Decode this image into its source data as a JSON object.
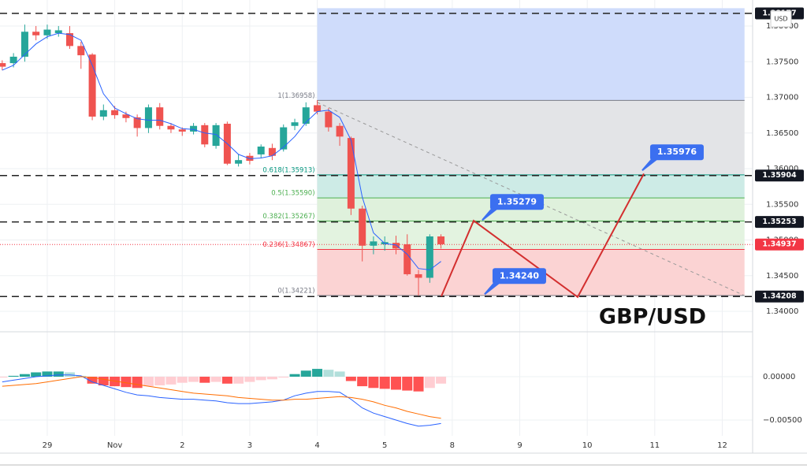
{
  "chart_data": [
    {
      "type": "candlestick",
      "symbol_label": "GBP/USD",
      "currency": "USD",
      "x": [
        -0.667,
        -0.5,
        -0.333,
        -0.167,
        0,
        0.167,
        0.333,
        0.5,
        0.667,
        0.833,
        1,
        1.167,
        1.333,
        1.5,
        1.667,
        1.833,
        2,
        2.167,
        2.333,
        2.5,
        2.667,
        2.833,
        3,
        3.167,
        3.333,
        3.5,
        3.667,
        3.833,
        4,
        4.167,
        4.333,
        4.5,
        4.667,
        4.833,
        5,
        5.167,
        5.333,
        5.5,
        5.667,
        5.833
      ],
      "open": [
        1.3748,
        1.3748,
        1.3757,
        1.3792,
        1.3787,
        1.379,
        1.379,
        1.3772,
        1.376,
        1.3673,
        1.3682,
        1.3676,
        1.3672,
        1.3657,
        1.3686,
        1.366,
        1.3655,
        1.3652,
        1.3661,
        1.3632,
        1.3663,
        1.3607,
        1.3618,
        1.362,
        1.3629,
        1.3627,
        1.366,
        1.3663,
        1.3689,
        1.368,
        1.366,
        1.3643,
        1.3544,
        1.3492,
        1.3494,
        1.3496,
        1.3494,
        1.3452,
        1.3447,
        1.3505
      ],
      "high": [
        1.3752,
        1.3762,
        1.3802,
        1.38,
        1.3802,
        1.38,
        1.38,
        1.3778,
        1.3762,
        1.369,
        1.3688,
        1.368,
        1.3676,
        1.369,
        1.3692,
        1.3664,
        1.3658,
        1.3664,
        1.3664,
        1.3664,
        1.3666,
        1.362,
        1.3622,
        1.3634,
        1.3635,
        1.3662,
        1.367,
        1.3693,
        1.3696,
        1.3685,
        1.3664,
        1.3645,
        1.3548,
        1.3505,
        1.3505,
        1.3506,
        1.3508,
        1.3458,
        1.3508,
        1.3508
      ],
      "low": [
        1.3738,
        1.3742,
        1.375,
        1.378,
        1.3782,
        1.3785,
        1.3768,
        1.374,
        1.3668,
        1.3668,
        1.367,
        1.3665,
        1.3645,
        1.365,
        1.3655,
        1.365,
        1.3646,
        1.3648,
        1.363,
        1.3628,
        1.3605,
        1.3603,
        1.3606,
        1.3615,
        1.3612,
        1.3624,
        1.3654,
        1.366,
        1.3676,
        1.3652,
        1.3632,
        1.3535,
        1.347,
        1.348,
        1.3485,
        1.348,
        1.345,
        1.3422,
        1.344,
        1.3488
      ],
      "close": [
        1.3743,
        1.3757,
        1.3792,
        1.3787,
        1.3795,
        1.3794,
        1.3772,
        1.3759,
        1.3673,
        1.3682,
        1.3675,
        1.3671,
        1.3657,
        1.3686,
        1.366,
        1.3655,
        1.3652,
        1.366,
        1.3634,
        1.3661,
        1.3607,
        1.3612,
        1.3611,
        1.3631,
        1.3618,
        1.3658,
        1.3665,
        1.3686,
        1.368,
        1.3658,
        1.3645,
        1.3544,
        1.3492,
        1.3498,
        1.3497,
        1.3488,
        1.3452,
        1.3447,
        1.3505,
        1.3494
      ],
      "up_color": "#26a69a",
      "down_color": "#ef5350",
      "ma": {
        "color": "#2962ff",
        "values": [
          1.3738,
          1.3745,
          1.376,
          1.3775,
          1.3785,
          1.379,
          1.3788,
          1.378,
          1.3745,
          1.3705,
          1.3685,
          1.3677,
          1.367,
          1.3668,
          1.3668,
          1.3663,
          1.3656,
          1.3655,
          1.365,
          1.3648,
          1.3635,
          1.362,
          1.3614,
          1.3615,
          1.3618,
          1.363,
          1.3645,
          1.3665,
          1.368,
          1.3682,
          1.3672,
          1.364,
          1.356,
          1.351,
          1.3495,
          1.3493,
          1.348,
          1.346,
          1.3458,
          1.347
        ]
      },
      "xlim": [
        -0.7,
        10.45
      ],
      "xticks": [
        {
          "value": 0,
          "label": "29"
        },
        {
          "value": 1,
          "label": "Nov"
        },
        {
          "value": 2,
          "label": "2"
        },
        {
          "value": 3,
          "label": "3"
        },
        {
          "value": 4,
          "label": "4"
        },
        {
          "value": 5,
          "label": "5"
        },
        {
          "value": 6,
          "label": "8"
        },
        {
          "value": 7,
          "label": "9"
        },
        {
          "value": 8,
          "label": "10"
        },
        {
          "value": 9,
          "label": "11"
        },
        {
          "value": 10,
          "label": "12"
        }
      ],
      "ylim": [
        1.33724,
        1.38365
      ],
      "yticks": [
        {
          "value": 1.34,
          "label": "1.34000"
        },
        {
          "value": 1.345,
          "label": "1.34500"
        },
        {
          "value": 1.35,
          "label": "1.35000"
        },
        {
          "value": 1.355,
          "label": "1.35500"
        },
        {
          "value": 1.36,
          "label": "1.36000"
        },
        {
          "value": 1.365,
          "label": "1.36500"
        },
        {
          "value": 1.37,
          "label": "1.37000"
        },
        {
          "value": 1.375,
          "label": "1.37500"
        },
        {
          "value": 1.38,
          "label": "1.38000"
        }
      ],
      "grid": true,
      "fib": {
        "x_start": 4.0,
        "x_end": 10.33,
        "levels": [
          {
            "value": 1.3825,
            "fill": "#cfdcfb"
          },
          {
            "value": 1.36958,
            "label": "1(1.36958)",
            "color": "#787b86",
            "fill": "#e3e4e7"
          },
          {
            "value": 1.35913,
            "label": "0.618(1.35913)",
            "color": "#089981",
            "fill": "#cdebe6"
          },
          {
            "value": 1.3559,
            "label": "0.5(1.35590)",
            "color": "#4caf50",
            "fill": "#dff1dc"
          },
          {
            "value": 1.35267,
            "label": "0.382(1.35267)",
            "color": "#4caf50",
            "fill": "#e3f3e0"
          },
          {
            "value": 1.34867,
            "label": "0.236(1.34867)",
            "color": "#f23645",
            "fill": "#fbd3d3"
          },
          {
            "value": 1.34221,
            "label": "0(1.34221)",
            "color": "#787b86"
          }
        ]
      },
      "hlines": [
        {
          "value": 1.38177,
          "label": "1.38177"
        },
        {
          "value": 1.35904,
          "label": "1.35904"
        },
        {
          "value": 1.35253,
          "label": "1.35253"
        },
        {
          "value": 1.34208,
          "label": "1.34208"
        }
      ],
      "last_price": {
        "value": 1.34937,
        "label": "1.34937",
        "color": "#f23645"
      },
      "trendline": {
        "x": [
          4.0,
          10.33
        ],
        "y": [
          1.3693,
          1.3422
        ]
      },
      "projection": {
        "color": "#d32f2f",
        "x": [
          5.838,
          6.317,
          7.858,
          8.839
        ],
        "y": [
          1.3421,
          1.3527,
          1.342,
          1.3593
        ]
      },
      "callouts": [
        {
          "value": 1.35279,
          "x": 6.445,
          "label": "1.35279"
        },
        {
          "value": 1.3424,
          "x": 6.48,
          "label": "1.34240"
        },
        {
          "value": 1.35976,
          "x": 8.815,
          "label": "1.35976"
        }
      ]
    },
    {
      "type": "macd",
      "histogram": [
        -0.0001,
        0.0001,
        0.0003,
        0.0005,
        0.0006,
        0.0006,
        0.0005,
        0.0001,
        -0.0008,
        -0.001,
        -0.0011,
        -0.0012,
        -0.0013,
        -0.0011,
        -0.001,
        -0.0009,
        -0.0007,
        -0.0006,
        -0.0007,
        -0.0006,
        -0.0008,
        -0.0008,
        -0.0006,
        -0.0004,
        -0.0003,
        -0.0001,
        0.0003,
        0.0007,
        0.0009,
        0.0008,
        0.0006,
        -0.0005,
        -0.0011,
        -0.0013,
        -0.0014,
        -0.0015,
        -0.0016,
        -0.0017,
        -0.0013,
        -0.0008
      ],
      "hist_colors": {
        "pos_rise": "#26a69a",
        "pos_fall": "#b2dfdb",
        "neg_fall": "#ff5252",
        "neg_rise": "#ffcdd2"
      },
      "series": [
        {
          "color": "#2962ff",
          "values": [
            -0.0006,
            -0.0004,
            -0.0002,
            0,
            0.0001,
            0.0002,
            0.0002,
            0.0001,
            -0.0006,
            -0.001,
            -0.0014,
            -0.0018,
            -0.0021,
            -0.0022,
            -0.0024,
            -0.0025,
            -0.0026,
            -0.0026,
            -0.0027,
            -0.0028,
            -0.003,
            -0.0031,
            -0.0031,
            -0.003,
            -0.0029,
            -0.0027,
            -0.0022,
            -0.0019,
            -0.0017,
            -0.0017,
            -0.0018,
            -0.0026,
            -0.0036,
            -0.0042,
            -0.0046,
            -0.005,
            -0.0054,
            -0.0057,
            -0.0056,
            -0.0054
          ]
        },
        {
          "color": "#ff6d00",
          "values": [
            -0.0011,
            -0.001,
            -0.0009,
            -0.0008,
            -0.0006,
            -0.0004,
            -0.0002,
            0,
            -0.0001,
            -0.0003,
            -0.0005,
            -0.0007,
            -0.0009,
            -0.0011,
            -0.0013,
            -0.0015,
            -0.0017,
            -0.0019,
            -0.002,
            -0.0021,
            -0.0022,
            -0.0024,
            -0.0025,
            -0.0026,
            -0.0027,
            -0.0027,
            -0.0026,
            -0.0026,
            -0.0025,
            -0.0024,
            -0.0023,
            -0.0024,
            -0.0026,
            -0.0029,
            -0.0033,
            -0.0036,
            -0.004,
            -0.0043,
            -0.0046,
            -0.0048
          ]
        }
      ],
      "ylim": [
        -0.00682,
        0.00509
      ],
      "yticks": [
        {
          "value": -0.005,
          "label": "−0.00500"
        },
        {
          "value": 0,
          "label": "0.00000"
        }
      ]
    }
  ]
}
